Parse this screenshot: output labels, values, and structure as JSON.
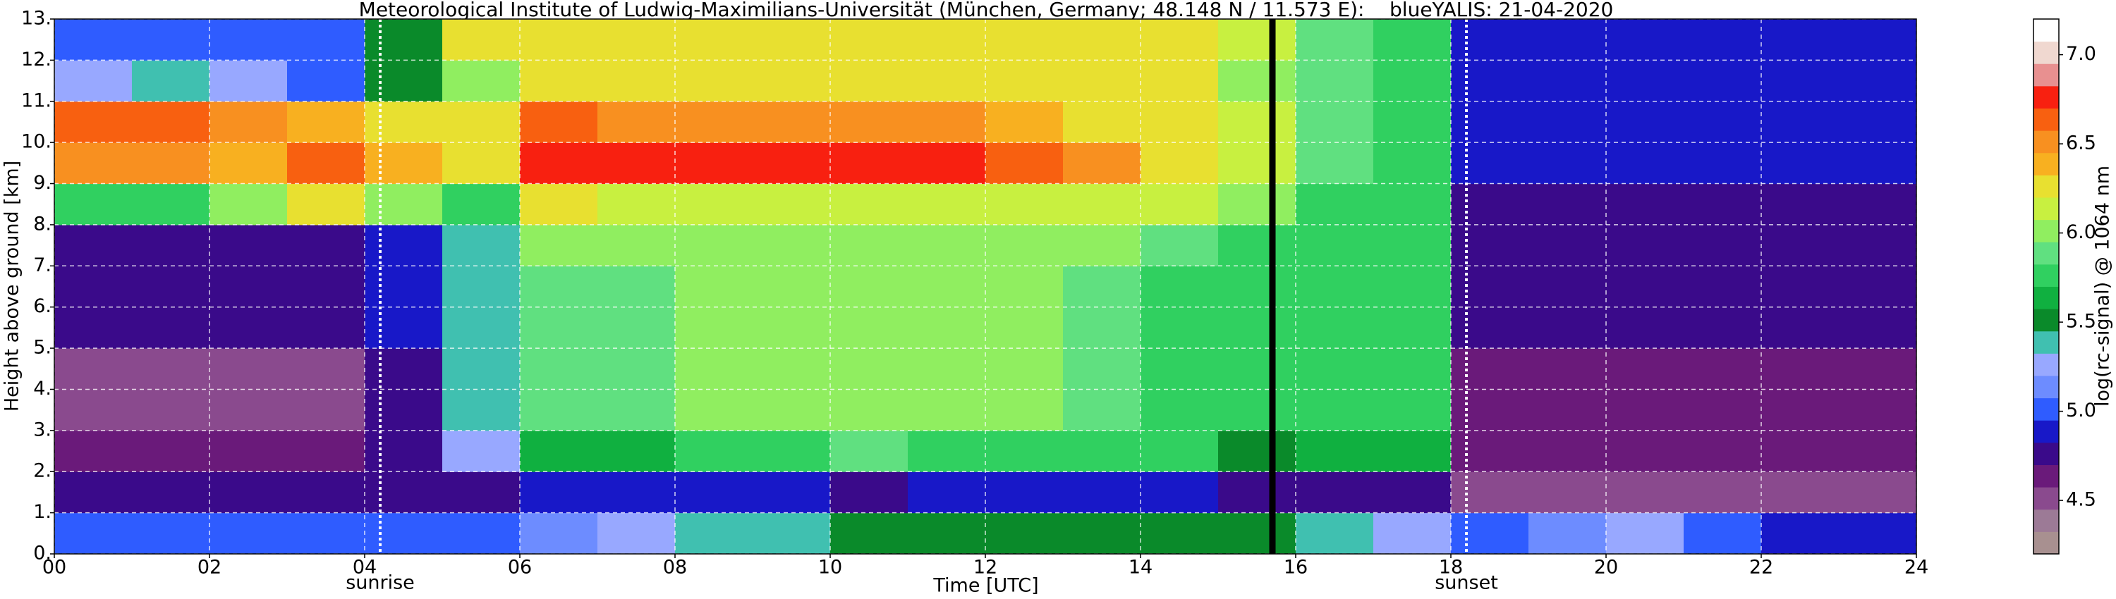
{
  "chart_data": {
    "type": "heatmap",
    "title": "Meteorological Institute of Ludwig-Maximilians-Universität (München, Germany; 48.148 N / 11.573 E):    blueYALIS: 21-04-2020",
    "x_label": "Time [UTC]",
    "y_label": "Height above ground [km]",
    "colorbar_label": "log(rc-signal) @ 1064 nm",
    "xlim": [
      0,
      24
    ],
    "ylim": [
      0,
      13
    ],
    "xticks": [
      {
        "value": 0,
        "label": "00"
      },
      {
        "value": 2,
        "label": "02"
      },
      {
        "value": 4,
        "label": "04"
      },
      {
        "value": 6,
        "label": "06"
      },
      {
        "value": 8,
        "label": "08"
      },
      {
        "value": 10,
        "label": "10"
      },
      {
        "value": 12,
        "label": "12"
      },
      {
        "value": 14,
        "label": "14"
      },
      {
        "value": 16,
        "label": "16"
      },
      {
        "value": 18,
        "label": "18"
      },
      {
        "value": 20,
        "label": "20"
      },
      {
        "value": 22,
        "label": "22"
      },
      {
        "value": 24,
        "label": "24"
      }
    ],
    "yticks": [
      {
        "value": 0,
        "label": "0."
      },
      {
        "value": 1,
        "label": "1."
      },
      {
        "value": 2,
        "label": "2."
      },
      {
        "value": 3,
        "label": "3."
      },
      {
        "value": 4,
        "label": "4."
      },
      {
        "value": 5,
        "label": "5."
      },
      {
        "value": 6,
        "label": "6."
      },
      {
        "value": 7,
        "label": "7."
      },
      {
        "value": 8,
        "label": "8."
      },
      {
        "value": 9,
        "label": "9."
      },
      {
        "value": 10,
        "label": "10."
      },
      {
        "value": 11,
        "label": "11."
      },
      {
        "value": 12,
        "label": "12."
      },
      {
        "value": 13,
        "label": "13."
      }
    ],
    "zlim": [
      4.2,
      7.2
    ],
    "zticks": [
      4.5,
      {
        "value": 5,
        "label": "5.0"
      },
      5.5,
      {
        "value": 6,
        "label": "6.0"
      },
      6.5,
      {
        "value": 7,
        "label": "7.0"
      }
    ],
    "colormap": [
      "#a89090",
      "#9c7a96",
      "#8a4a8e",
      "#6a1a7a",
      "#3a0a8a",
      "#1818c8",
      "#2f5cff",
      "#6d8cff",
      "#98a8ff",
      "#40c0b0",
      "#0a8a2a",
      "#10b040",
      "#30d060",
      "#60e080",
      "#90ee60",
      "#c8f040",
      "#e8e030",
      "#f8b020",
      "#f89020",
      "#f86010",
      "#f82010",
      "#e89090",
      "#f0d8d0",
      "#ffffff"
    ],
    "grid": true,
    "x_edges": [
      0,
      1,
      2,
      3,
      4,
      5,
      6,
      7,
      8,
      9,
      10,
      11,
      12,
      13,
      14,
      15,
      16,
      17,
      18,
      19,
      20,
      21,
      22,
      23,
      24
    ],
    "y_edges": [
      0,
      1,
      2,
      3,
      4,
      5,
      6,
      7,
      8,
      9,
      10,
      11,
      12,
      13
    ],
    "z": [
      [
        5.0,
        5.0,
        5.0,
        5.0,
        5.0,
        5.0,
        5.1,
        5.2,
        5.4,
        5.4,
        5.5,
        5.5,
        5.5,
        5.5,
        5.5,
        5.5,
        5.4,
        5.3,
        5.0,
        5.1,
        5.2,
        5.0,
        4.9,
        4.9
      ],
      [
        4.8,
        4.8,
        4.8,
        4.8,
        4.8,
        4.8,
        4.9,
        4.9,
        4.9,
        4.9,
        4.8,
        4.9,
        4.9,
        4.9,
        4.9,
        4.8,
        4.8,
        4.8,
        4.5,
        4.5,
        4.5,
        4.5,
        4.5,
        4.5
      ],
      [
        4.6,
        4.6,
        4.6,
        4.6,
        4.7,
        5.2,
        5.6,
        5.6,
        5.8,
        5.8,
        5.9,
        5.8,
        5.8,
        5.8,
        5.7,
        5.5,
        5.6,
        5.6,
        4.6,
        4.6,
        4.6,
        4.6,
        4.6,
        4.6
      ],
      [
        4.5,
        4.5,
        4.5,
        4.5,
        4.8,
        5.4,
        5.9,
        5.9,
        6.0,
        6.0,
        6.0,
        6.0,
        6.0,
        5.9,
        5.8,
        5.7,
        5.7,
        5.7,
        4.6,
        4.6,
        4.6,
        4.6,
        4.6,
        4.6
      ],
      [
        4.5,
        4.5,
        4.5,
        4.5,
        4.8,
        5.4,
        5.9,
        5.9,
        6.0,
        6.0,
        6.0,
        6.0,
        6.0,
        5.9,
        5.8,
        5.7,
        5.7,
        5.7,
        4.6,
        4.6,
        4.6,
        4.6,
        4.6,
        4.6
      ],
      [
        4.7,
        4.7,
        4.7,
        4.7,
        4.9,
        5.4,
        5.9,
        5.9,
        6.0,
        6.0,
        6.0,
        6.0,
        6.0,
        5.9,
        5.8,
        5.7,
        5.7,
        5.7,
        4.7,
        4.7,
        4.7,
        4.7,
        4.7,
        4.7
      ],
      [
        4.7,
        4.7,
        4.7,
        4.7,
        4.9,
        5.4,
        5.9,
        5.9,
        6.0,
        6.0,
        6.0,
        6.0,
        6.0,
        5.9,
        5.8,
        5.7,
        5.7,
        5.7,
        4.7,
        4.7,
        4.7,
        4.7,
        4.7,
        4.7
      ],
      [
        4.7,
        4.7,
        4.7,
        4.7,
        4.9,
        5.4,
        6.0,
        6.0,
        6.0,
        6.0,
        6.0,
        6.0,
        6.0,
        6.0,
        5.9,
        5.8,
        5.7,
        5.7,
        4.7,
        4.7,
        4.7,
        4.7,
        4.7,
        4.7
      ],
      [
        5.8,
        5.8,
        6.0,
        6.2,
        6.0,
        5.8,
        6.2,
        6.1,
        6.1,
        6.1,
        6.1,
        6.1,
        6.1,
        6.1,
        6.1,
        6.0,
        5.8,
        5.8,
        4.8,
        4.8,
        4.8,
        4.8,
        4.8,
        4.8
      ],
      [
        6.5,
        6.5,
        6.4,
        6.6,
        6.4,
        6.3,
        6.8,
        6.7,
        6.7,
        6.8,
        6.7,
        6.7,
        6.6,
        6.5,
        6.3,
        6.1,
        5.9,
        5.8,
        4.9,
        4.9,
        4.9,
        4.9,
        4.9,
        4.9
      ],
      [
        6.6,
        6.6,
        6.5,
        6.4,
        6.3,
        6.2,
        6.6,
        6.5,
        6.5,
        6.5,
        6.5,
        6.5,
        6.4,
        6.3,
        6.2,
        6.1,
        5.9,
        5.8,
        4.9,
        4.9,
        4.9,
        4.9,
        4.9,
        4.9
      ],
      [
        5.3,
        5.4,
        5.3,
        5.0,
        5.5,
        6.0,
        6.3,
        6.2,
        6.2,
        6.2,
        6.2,
        6.2,
        6.2,
        6.2,
        6.2,
        6.0,
        5.9,
        5.8,
        4.9,
        4.9,
        4.9,
        4.9,
        4.9,
        4.9
      ],
      [
        5.0,
        5.0,
        5.0,
        5.0,
        5.5,
        6.3,
        6.3,
        6.3,
        6.3,
        6.3,
        6.3,
        6.3,
        6.3,
        6.3,
        6.3,
        6.1,
        5.9,
        5.8,
        4.9,
        4.9,
        4.9,
        4.9,
        4.9,
        4.9
      ]
    ],
    "annotations": [
      {
        "text": "sunrise",
        "x": 4.2
      },
      {
        "text": "sunset",
        "x": 18.2
      }
    ],
    "missing_x": [
      15.7
    ]
  }
}
